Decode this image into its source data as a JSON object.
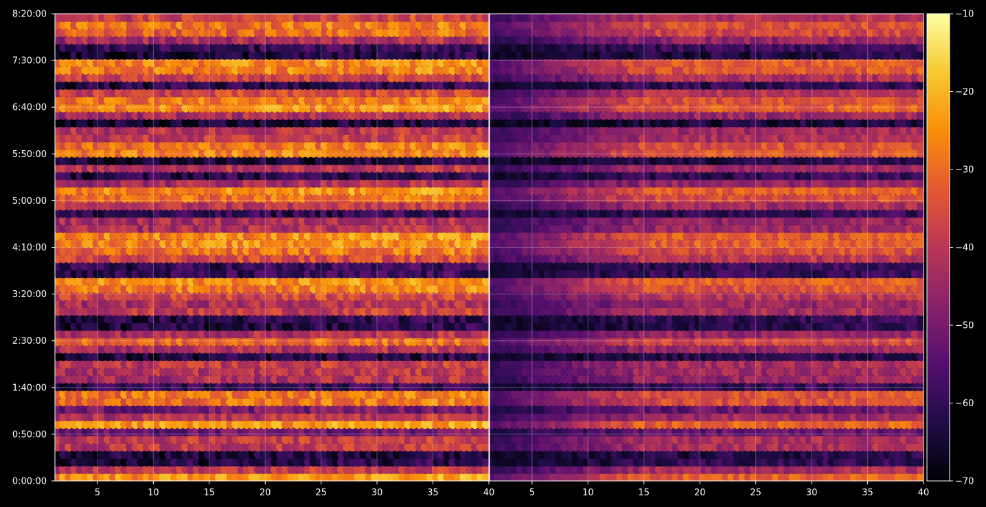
{
  "chart_data": {
    "type": "heatmap",
    "colormap": "inferno",
    "background": "#000000",
    "panels": [
      {
        "name": "left",
        "x_ticks": [
          "5",
          "10",
          "15",
          "20",
          "25",
          "30",
          "35",
          "40"
        ],
        "x_tick_values": [
          5,
          10,
          15,
          20,
          25,
          30,
          35,
          40
        ],
        "xlim": [
          1.2,
          40.0
        ],
        "brightness": 1.0
      },
      {
        "name": "right",
        "x_ticks": [
          "5",
          "10",
          "15",
          "20",
          "25",
          "30",
          "35",
          "40"
        ],
        "x_tick_values": [
          5,
          10,
          15,
          20,
          25,
          30,
          35,
          40
        ],
        "xlim": [
          1.2,
          40.0
        ],
        "brightness": 0.78
      }
    ],
    "y_ticks": [
      "8:20:00",
      "7:30:00",
      "6:40:00",
      "5:50:00",
      "5:00:00",
      "4:10:00",
      "3:20:00",
      "2:30:00",
      "1:40:00",
      "0:50:00",
      "0:00:00"
    ],
    "y_tick_values_seconds": [
      30000,
      27000,
      24000,
      21000,
      18000,
      15000,
      12000,
      9000,
      6000,
      3000,
      0
    ],
    "ylim_seconds": [
      0,
      30000
    ],
    "grid": true,
    "colorbar": {
      "ticks": [
        "−10",
        "−20",
        "−30",
        "−40",
        "−50",
        "−60",
        "−70"
      ],
      "tick_values": [
        -10,
        -20,
        -30,
        -40,
        -50,
        -60,
        -70
      ],
      "range": [
        -70,
        -10
      ]
    },
    "hot_rows_seconds": [
      300,
      3000,
      3600,
      4800,
      5400,
      9000,
      12600,
      15000,
      15600,
      18000,
      18600,
      21000,
      21600,
      24000,
      24600,
      26400,
      27000,
      28800,
      29400
    ],
    "cold_rows_seconds": [
      1500,
      3300,
      4500,
      6000,
      7800,
      10200,
      13200,
      13800,
      17100,
      19500,
      20700,
      23100,
      25500,
      27600
    ],
    "value_range_dbfs": [
      -70,
      -10
    ]
  }
}
